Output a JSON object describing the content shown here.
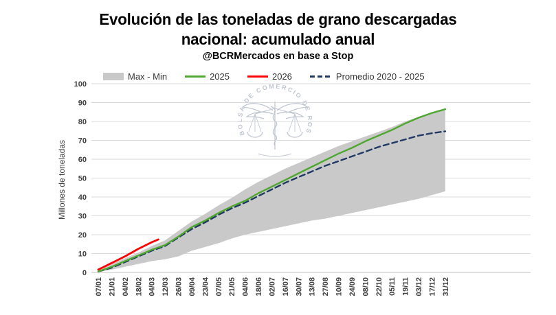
{
  "header": {
    "title_line1": "Evolución de las toneladas de grano descargadas",
    "title_line2": "nacional: acumulado anual",
    "subtitle": "@BCRMercados en base a Stop"
  },
  "watermark": {
    "text": "BOLSA DE COMERCIO DE ROSARIO"
  },
  "legend": {
    "items": [
      {
        "label": "Max - Min",
        "type": "band",
        "color": "#C9C9C9"
      },
      {
        "label": "2025",
        "type": "line",
        "color": "#4EA72E"
      },
      {
        "label": "2026",
        "type": "line",
        "color": "#FF0000"
      },
      {
        "label": "Promedio 2020 - 2025",
        "type": "dashed",
        "color": "#1F3864"
      }
    ]
  },
  "chart_data": {
    "type": "area+line",
    "title": "Evolución de las toneladas de grano descargadas nacional: acumulado anual",
    "subtitle": "@BCRMercados en base a Stop",
    "xlabel": "",
    "ylabel": "Millones de toneladas",
    "ylim": [
      0,
      100
    ],
    "grid": true,
    "legend_position": "top",
    "y_ticks": [
      0,
      10,
      20,
      30,
      40,
      50,
      60,
      70,
      80,
      90,
      100
    ],
    "x_labels": [
      "07/01",
      "21/01",
      "04/02",
      "18/02",
      "04/03",
      "12/03",
      "26/03",
      "09/04",
      "23/04",
      "07/05",
      "21/05",
      "04/06",
      "18/06",
      "02/07",
      "16/07",
      "30/07",
      "13/08",
      "27/08",
      "10/09",
      "24/09",
      "08/10",
      "22/10",
      "05/11",
      "19/11",
      "03/12",
      "17/12",
      "31/12"
    ],
    "band": {
      "name": "Max - Min",
      "color": "#C9C9C9",
      "max": [
        1,
        4.5,
        7.5,
        10.5,
        14,
        17,
        22,
        27,
        31,
        35.5,
        39.5,
        44,
        48,
        51.5,
        55,
        58,
        61,
        64,
        67,
        69.5,
        72,
        74.5,
        77,
        80,
        82.5,
        85,
        87
      ],
      "min": [
        0.2,
        1.5,
        3,
        4.5,
        6,
        7,
        8.5,
        11.5,
        13.5,
        15.5,
        18,
        20,
        21.5,
        23,
        24.5,
        26,
        27.5,
        28.5,
        30,
        31.5,
        33,
        34.5,
        36,
        37.5,
        39,
        41,
        43
      ]
    },
    "series": [
      {
        "name": "Promedio 2020 - 2025",
        "color": "#1F3864",
        "style": "dashed",
        "values": [
          0.5,
          2.5,
          5.5,
          8.5,
          11.5,
          14,
          18.5,
          23,
          26.5,
          30.5,
          34,
          37,
          40.5,
          44,
          47.5,
          50.5,
          53.5,
          56.5,
          59,
          61.5,
          64,
          66.5,
          68.5,
          70.5,
          72.5,
          73.8,
          74.8
        ]
      },
      {
        "name": "2025",
        "color": "#4EA72E",
        "style": "solid",
        "values": [
          0.5,
          3,
          6,
          9,
          12,
          14.5,
          19,
          24,
          27.5,
          31.5,
          35,
          38,
          42,
          45.5,
          49,
          52.5,
          56,
          59.5,
          63,
          66,
          69.5,
          72.5,
          75.5,
          79,
          82,
          84.5,
          86.5
        ]
      },
      {
        "name": "2026",
        "color": "#FF0000",
        "style": "solid",
        "x_index": [
          0,
          1,
          2,
          3,
          4,
          4.5
        ],
        "values": [
          1.5,
          5,
          8.5,
          12.5,
          16,
          17.5
        ]
      }
    ]
  }
}
